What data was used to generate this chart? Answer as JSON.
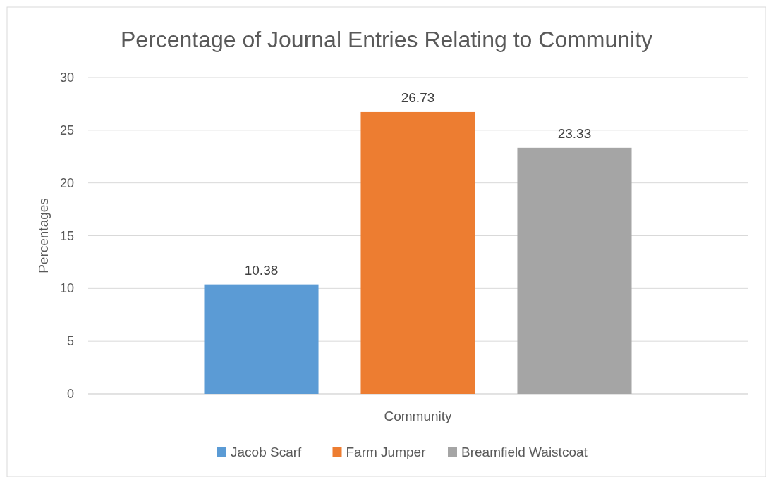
{
  "chart_data": {
    "type": "bar",
    "title": "Percentage of Journal Entries Relating to Community",
    "ylabel": "Percentages",
    "categories": [
      "Community"
    ],
    "series": [
      {
        "name": "Jacob Scarf",
        "color": "#5b9bd5",
        "values": [
          10.38
        ]
      },
      {
        "name": "Farm Jumper",
        "color": "#ed7d31",
        "values": [
          26.73
        ]
      },
      {
        "name": "Breamfield Waistcoat",
        "color": "#a5a5a5",
        "values": [
          23.33
        ]
      }
    ],
    "ylim": [
      0,
      30
    ],
    "yticks": [
      0,
      5,
      10,
      15,
      20,
      25,
      30
    ],
    "grid": "y",
    "data_labels": true,
    "legend": "bottom"
  }
}
